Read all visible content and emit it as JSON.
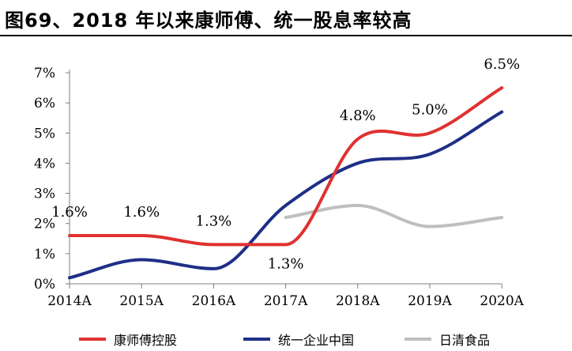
{
  "header": {
    "title": "图69、2018 年以来康师傅、统一股息率较高"
  },
  "chart_data": {
    "type": "line",
    "title": "图69、2018 年以来康师傅、统一股息率较高",
    "xlabel": "",
    "ylabel": "",
    "categories": [
      "2014A",
      "2015A",
      "2016A",
      "2017A",
      "2018A",
      "2019A",
      "2020A"
    ],
    "y_ticks": [
      "0%",
      "1%",
      "2%",
      "3%",
      "4%",
      "5%",
      "6%",
      "7%"
    ],
    "ylim": [
      0,
      7
    ],
    "y_unit": "%",
    "grid": false,
    "legend_position": "bottom",
    "series": [
      {
        "name": "康师傅控股",
        "color": "#e03131",
        "values": [
          1.6,
          1.6,
          1.3,
          1.3,
          4.8,
          5.0,
          6.5
        ],
        "labels": [
          "1.6%",
          "1.6%",
          "1.3%",
          "1.3%",
          "4.8%",
          "5.0%",
          "6.5%"
        ]
      },
      {
        "name": "统一企业中国",
        "color": "#1f2f87",
        "values": [
          0.2,
          0.8,
          0.5,
          2.6,
          4.0,
          4.3,
          5.7
        ]
      },
      {
        "name": "日清食品",
        "color": "#bfbfbf",
        "values": [
          null,
          null,
          null,
          2.2,
          2.6,
          1.9,
          2.2
        ]
      }
    ]
  }
}
